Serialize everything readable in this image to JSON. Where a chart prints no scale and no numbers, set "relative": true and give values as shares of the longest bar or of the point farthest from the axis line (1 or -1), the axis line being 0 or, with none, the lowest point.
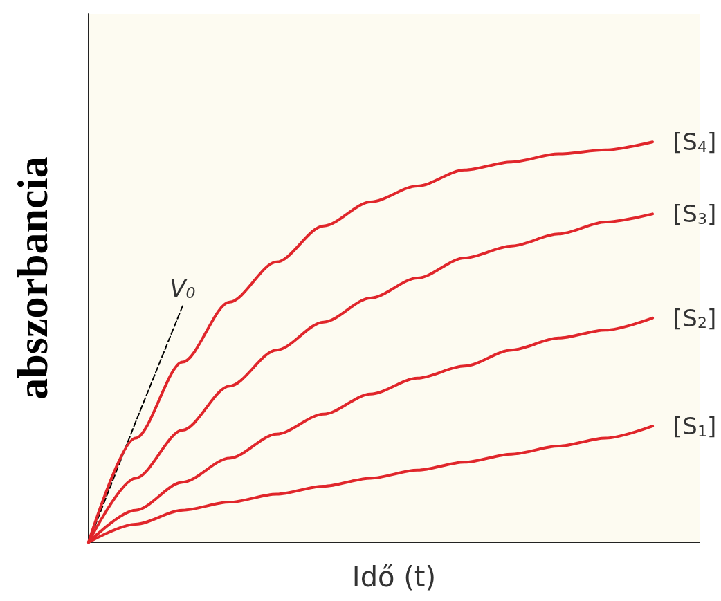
{
  "chart_data": {
    "type": "line",
    "relative": true,
    "xlabel": "Idő (t)",
    "ylabel": "abszorbancia",
    "categories": [
      null,
      null,
      null,
      null,
      null,
      null,
      null,
      null,
      null,
      null,
      null,
      null,
      null,
      null
    ],
    "series": [
      {
        "name": "[S$_{4}$]",
        "color": "#e0262b",
        "values": [
          0,
          0.26,
          0.45,
          0.6,
          0.7,
          0.79,
          0.85,
          0.89,
          0.93,
          0.95,
          0.97,
          0.98,
          1.0,
          null
        ]
      },
      {
        "name": "[S$_{3}$]",
        "color": "#e0262b",
        "values": [
          0,
          0.16,
          0.28,
          0.39,
          0.48,
          0.55,
          0.61,
          0.66,
          0.71,
          0.74,
          0.77,
          0.8,
          0.82,
          null
        ]
      },
      {
        "name": "[S$_{2}$]",
        "color": "#e0262b",
        "values": [
          0,
          0.08,
          0.15,
          0.21,
          0.27,
          0.32,
          0.37,
          0.41,
          0.44,
          0.48,
          0.51,
          0.53,
          0.56,
          null
        ]
      },
      {
        "name": "[S$_{1}$]",
        "color": "#e0262b",
        "values": [
          0,
          0.045,
          0.08,
          0.1,
          0.12,
          0.14,
          0.16,
          0.18,
          0.2,
          0.22,
          0.24,
          0.26,
          0.29,
          null
        ]
      },
      {
        "name": "V$_{0}$",
        "color": "#000000",
        "line_style": "dashed",
        "values": [
          0,
          0.3,
          0.59,
          null,
          null,
          null,
          null,
          null,
          null,
          null,
          null,
          null,
          null,
          null
        ]
      }
    ],
    "grid": false,
    "legend": false,
    "marker": "none"
  }
}
